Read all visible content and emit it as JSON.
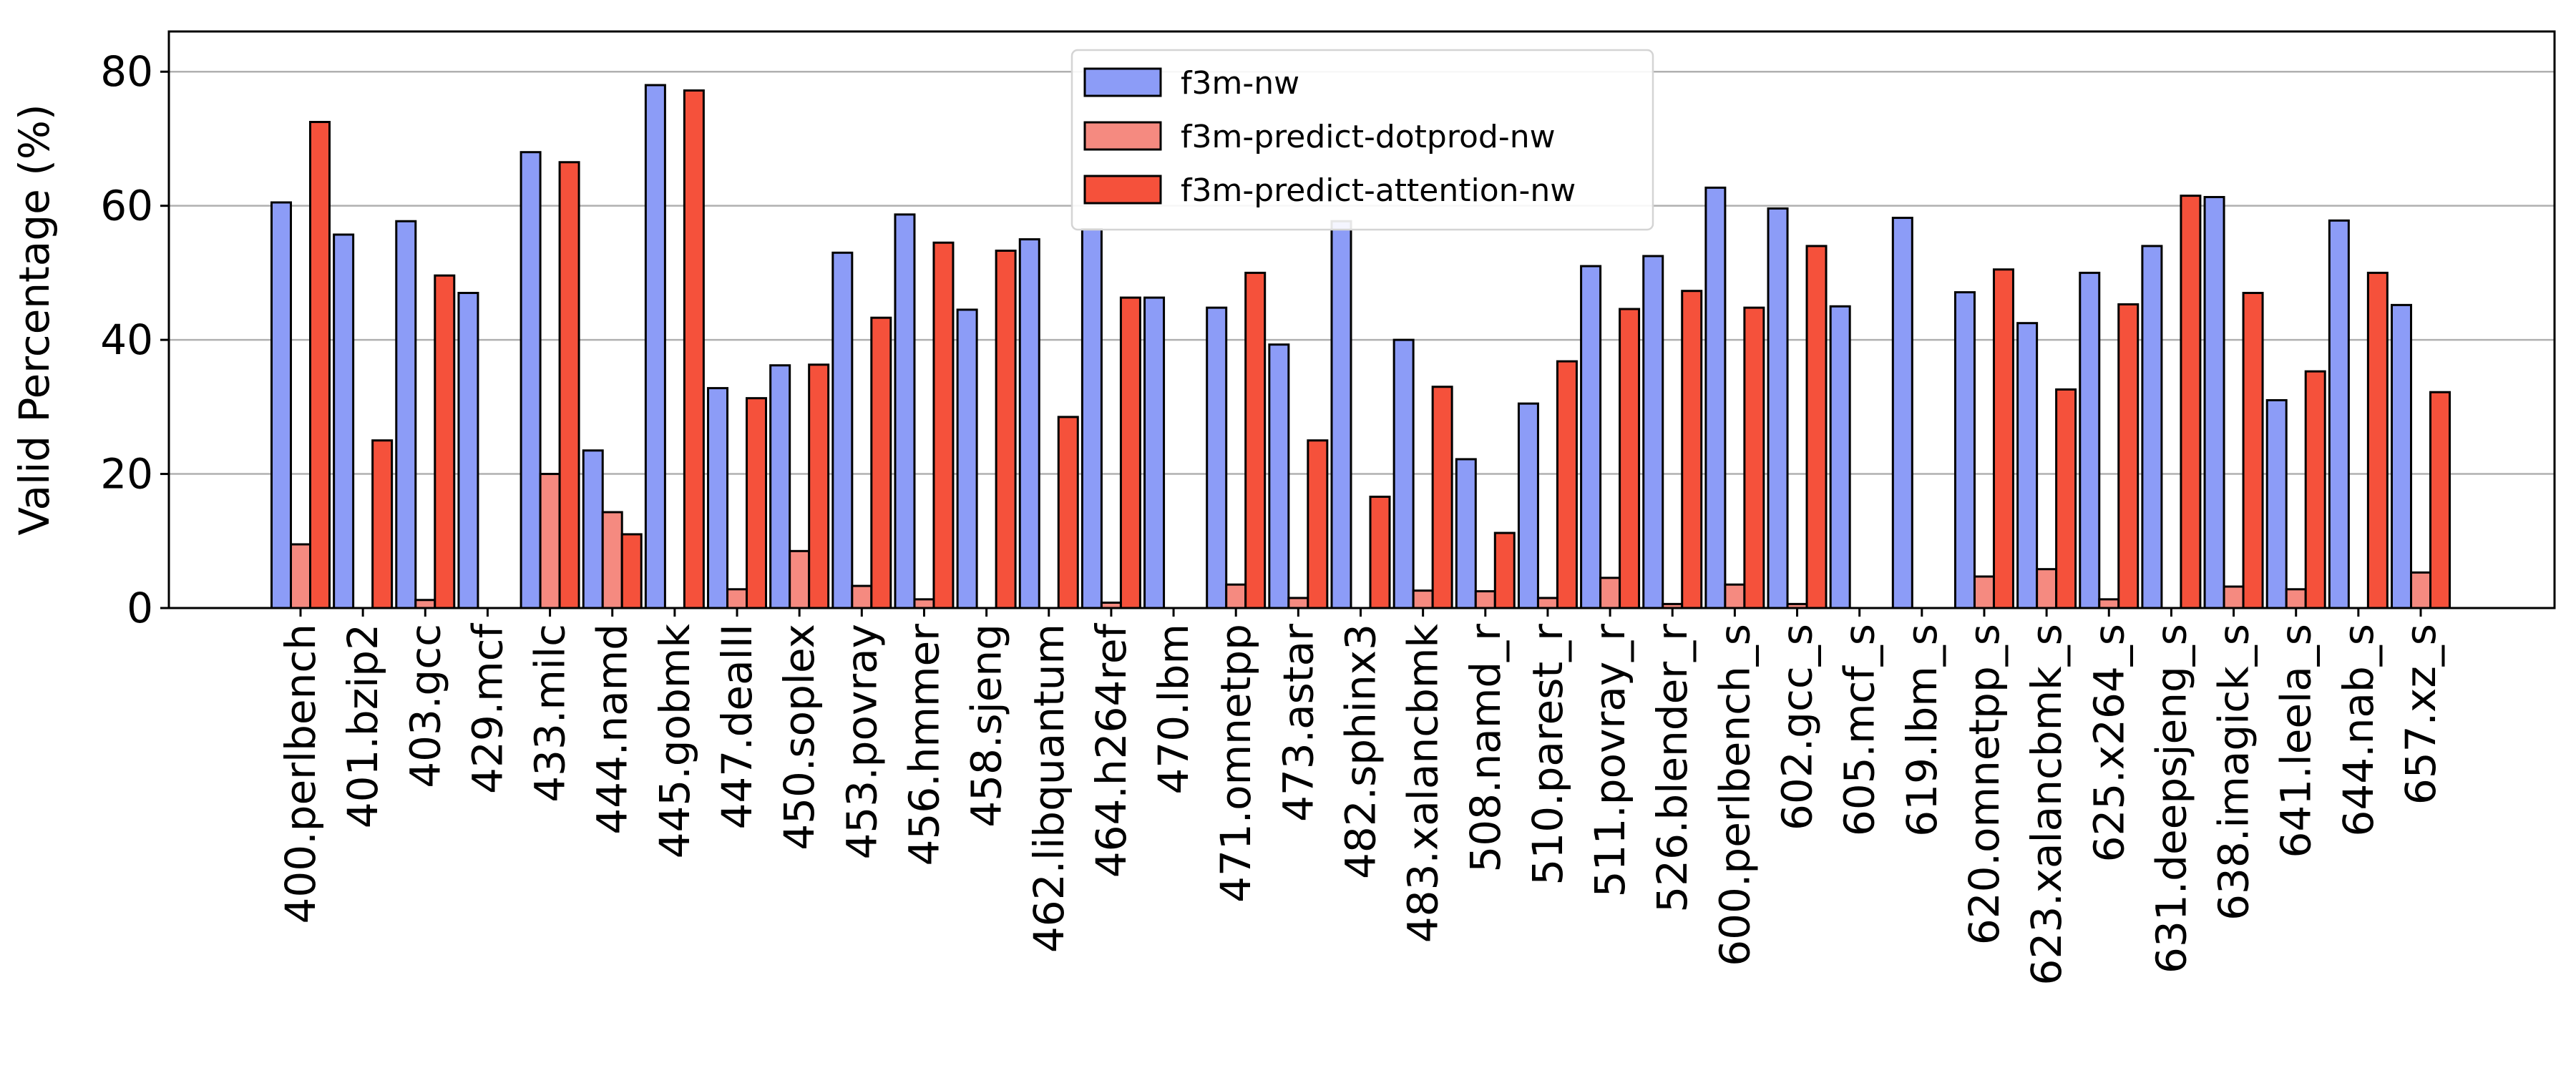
{
  "chart_data": {
    "type": "bar",
    "title": "",
    "xlabel": "",
    "ylabel": "Valid Percentage (%)",
    "ylim": [
      0,
      86
    ],
    "yticks": [
      0,
      20,
      40,
      60,
      80
    ],
    "grid": "y",
    "legend_position": "top-center",
    "categories": [
      "400.perlbench",
      "401.bzip2",
      "403.gcc",
      "429.mcf",
      "433.milc",
      "444.namd",
      "445.gobmk",
      "447.dealII",
      "450.soplex",
      "453.povray",
      "456.hmmer",
      "458.sjeng",
      "462.libquantum",
      "464.h264ref",
      "470.lbm",
      "471.omnetpp",
      "473.astar",
      "482.sphinx3",
      "483.xalancbmk",
      "508.namd_r",
      "510.parest_r",
      "511.povray_r",
      "526.blender_r",
      "600.perlbench_s",
      "602.gcc_s",
      "605.mcf_s",
      "619.lbm_s",
      "620.omnetpp_s",
      "623.xalancbmk_s",
      "625.x264_s",
      "631.deepsjeng_s",
      "638.imagick_s",
      "641.leela_s",
      "644.nab_s",
      "657.xz_s"
    ],
    "series": [
      {
        "name": "f3m-nw",
        "color": "#8c9cf7",
        "values": [
          60.5,
          55.7,
          57.7,
          47.0,
          68.0,
          23.5,
          78.0,
          32.8,
          36.2,
          53.0,
          58.7,
          44.5,
          55.0,
          56.5,
          46.3,
          44.8,
          39.3,
          57.7,
          40.0,
          22.2,
          30.5,
          51.0,
          52.5,
          62.7,
          59.6,
          45.0,
          58.2,
          47.1,
          42.5,
          50.0,
          54.0,
          61.3,
          31.0,
          57.8,
          45.2
        ]
      },
      {
        "name": "f3m-predict-dotprod-nw",
        "color": "#f58a80",
        "values": [
          9.5,
          0,
          1.2,
          0,
          20.0,
          14.3,
          0,
          2.8,
          8.5,
          3.3,
          1.3,
          0,
          0,
          0.8,
          0,
          3.5,
          1.5,
          0,
          2.6,
          2.5,
          1.5,
          4.5,
          0.6,
          3.5,
          0.6,
          0,
          0,
          4.7,
          5.8,
          1.3,
          0,
          3.2,
          2.8,
          0,
          5.3
        ]
      },
      {
        "name": "f3m-predict-attention-nw",
        "color": "#f5513b",
        "values": [
          72.5,
          25.0,
          49.6,
          0,
          66.5,
          11.0,
          77.2,
          31.3,
          36.3,
          43.3,
          54.5,
          53.3,
          28.5,
          46.3,
          0,
          50.0,
          25.0,
          16.6,
          33.0,
          11.2,
          36.8,
          44.6,
          47.3,
          44.8,
          54.0,
          0,
          0,
          50.5,
          32.6,
          45.3,
          61.5,
          47.0,
          35.3,
          50.0,
          32.2
        ]
      }
    ]
  }
}
